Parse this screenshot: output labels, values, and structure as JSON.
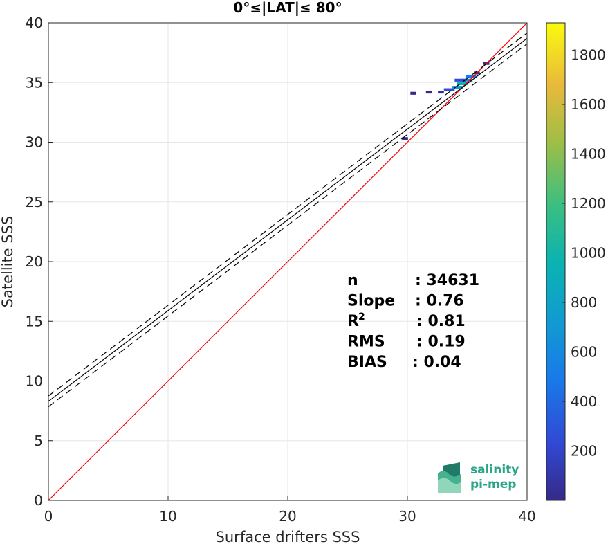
{
  "chart_data": {
    "type": "heatmap",
    "title": "0°≤|LAT|≤ 80°",
    "xlabel": "Surface drifters SSS",
    "ylabel": "Satellite SSS",
    "xlim": [
      0,
      40
    ],
    "ylim": [
      0,
      40
    ],
    "xticks": [
      "0",
      "10",
      "20",
      "30",
      "40"
    ],
    "yticks": [
      "0",
      "5",
      "10",
      "15",
      "20",
      "25",
      "30",
      "35",
      "40"
    ],
    "grid": true,
    "colorbar": {
      "range": [
        0,
        1930
      ],
      "ticks": [
        "200",
        "400",
        "600",
        "800",
        "1000",
        "1200",
        "1400",
        "1600",
        "1800"
      ],
      "colormap": "parula"
    },
    "lines": [
      {
        "kind": "one-to-one",
        "color": "#ff0000",
        "style": "solid",
        "slope": 1,
        "intercept": 0
      },
      {
        "kind": "regression",
        "color": "#000000",
        "style": "solid",
        "slope": 0.76,
        "intercept": 8.3
      },
      {
        "kind": "regression-upper",
        "color": "#000000",
        "style": "dashed",
        "slope": 0.76,
        "intercept": 8.75
      },
      {
        "kind": "regression-lower",
        "color": "#000000",
        "style": "dashed",
        "slope": 0.76,
        "intercept": 7.85
      }
    ],
    "density_cells": [
      {
        "x": 33.5,
        "y": 34.4,
        "count": 350
      },
      {
        "x": 34.2,
        "y": 34.6,
        "count": 700
      },
      {
        "x": 34.6,
        "y": 34.9,
        "count": 900
      },
      {
        "x": 35.0,
        "y": 35.2,
        "count": 650
      },
      {
        "x": 35.3,
        "y": 35.5,
        "count": 450
      },
      {
        "x": 34.4,
        "y": 35.2,
        "count": 300
      },
      {
        "x": 32.8,
        "y": 34.2,
        "count": 120
      },
      {
        "x": 31.8,
        "y": 34.2,
        "count": 60
      },
      {
        "x": 30.5,
        "y": 34.1,
        "count": 40
      },
      {
        "x": 29.8,
        "y": 30.3,
        "count": 30
      },
      {
        "x": 35.8,
        "y": 35.8,
        "count": 80
      },
      {
        "x": 36.6,
        "y": 36.6,
        "count": 40
      }
    ],
    "stats": [
      {
        "label": "n",
        "value": ": 34631"
      },
      {
        "label": "Slope",
        "value": ": 0.76"
      },
      {
        "label": "R",
        "sup": "2",
        "value": ": 0.81"
      },
      {
        "label": "RMS",
        "value": ": 0.19"
      },
      {
        "label": "BIAS",
        "value": ": 0.04"
      }
    ]
  },
  "logo": {
    "line1": "salinity",
    "line2": "pi-mep",
    "color": "#2aa58a"
  }
}
